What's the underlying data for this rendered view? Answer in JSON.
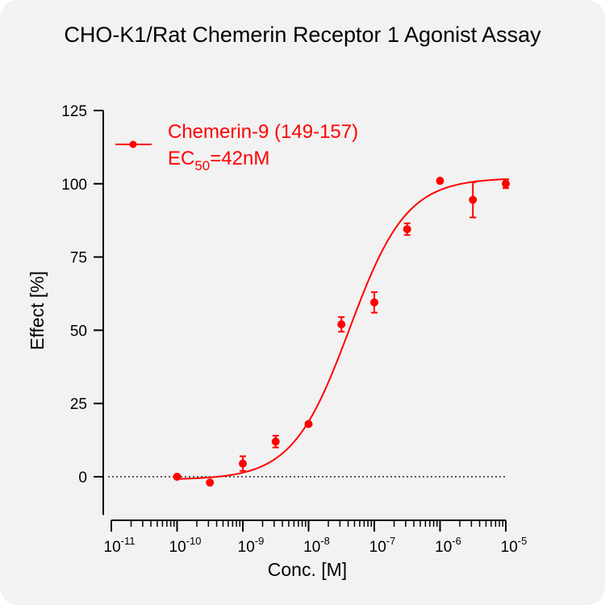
{
  "chart_data": {
    "type": "scatter",
    "title": "CHO-K1/Rat Chemerin Receptor 1 Agonist Assay",
    "xlabel": "Conc. [M]",
    "ylabel": "Effect  [%]",
    "x_scale": "log",
    "xlim": [
      1e-11,
      1e-05
    ],
    "ylim": [
      -10,
      125
    ],
    "y_ticks": [
      "0",
      "25",
      "50",
      "75",
      "100",
      "125"
    ],
    "x_ticks": [
      {
        "base": "10",
        "exp": "-11"
      },
      {
        "base": "10",
        "exp": "-10"
      },
      {
        "base": "10",
        "exp": "-9"
      },
      {
        "base": "10",
        "exp": "-8"
      },
      {
        "base": "10",
        "exp": "-7"
      },
      {
        "base": "10",
        "exp": "-6"
      },
      {
        "base": "10",
        "exp": "-5"
      }
    ],
    "color": "#ff0000",
    "series": [
      {
        "name": "Chemerin-9 (149-157)",
        "ec50_label_prefix": "EC",
        "ec50_label_sub": "50",
        "ec50_label_suffix": "=42nM",
        "ec50": 4.2e-08,
        "points": [
          {
            "x": 1e-10,
            "y": 0,
            "err": 0
          },
          {
            "x": 3.16e-10,
            "y": -2,
            "err": 0
          },
          {
            "x": 1e-09,
            "y": 4.5,
            "err": 2.5
          },
          {
            "x": 3.16e-09,
            "y": 12,
            "err": 2
          },
          {
            "x": 1e-08,
            "y": 18,
            "err": 0
          },
          {
            "x": 3.16e-08,
            "y": 52,
            "err": 2.5
          },
          {
            "x": 1e-07,
            "y": 59.5,
            "err": 3.5
          },
          {
            "x": 3.16e-07,
            "y": 84.5,
            "err": 2
          },
          {
            "x": 1e-06,
            "y": 101,
            "err": 0
          },
          {
            "x": 3.16e-06,
            "y": 94.5,
            "err": 6
          },
          {
            "x": 1e-05,
            "y": 100,
            "err": 1.5
          }
        ],
        "fit": {
          "bottom": -1,
          "top": 102,
          "hill": 1.0
        }
      }
    ],
    "zero_line": "dotted",
    "grid": false,
    "legend_position": "top-left"
  }
}
